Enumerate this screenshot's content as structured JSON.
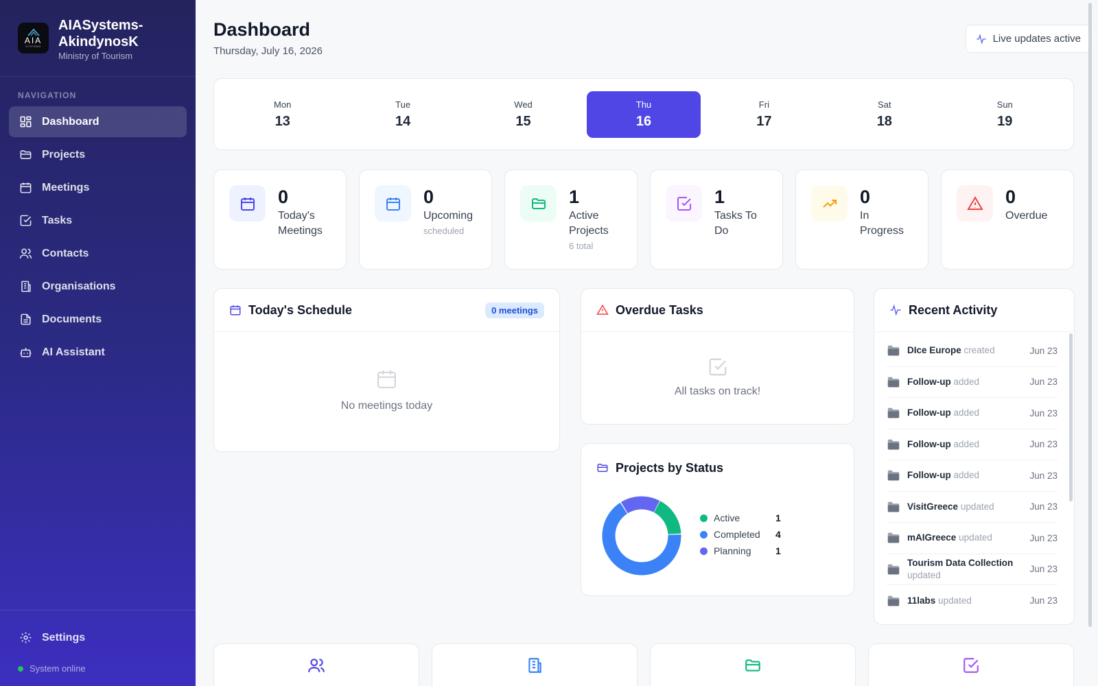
{
  "brand": {
    "name": "AIASystems-AkindynosK",
    "org": "Ministry of Tourism",
    "logo_text": "AIA",
    "logo_sub": "SYSTEMS"
  },
  "nav": {
    "heading": "NAVIGATION",
    "items": [
      {
        "label": "Dashboard",
        "icon": "grid-icon",
        "active": true
      },
      {
        "label": "Projects",
        "icon": "folder-icon"
      },
      {
        "label": "Meetings",
        "icon": "calendar-icon"
      },
      {
        "label": "Tasks",
        "icon": "checkbox-icon"
      },
      {
        "label": "Contacts",
        "icon": "users-icon"
      },
      {
        "label": "Organisations",
        "icon": "building-icon"
      },
      {
        "label": "Documents",
        "icon": "document-icon"
      },
      {
        "label": "AI Assistant",
        "icon": "bot-icon"
      }
    ],
    "settings": "Settings",
    "status": "System online"
  },
  "header": {
    "title": "Dashboard",
    "date": "Thursday, July 16, 2026",
    "live": "Live updates active"
  },
  "week": [
    {
      "name": "Mon",
      "num": "13"
    },
    {
      "name": "Tue",
      "num": "14"
    },
    {
      "name": "Wed",
      "num": "15"
    },
    {
      "name": "Thu",
      "num": "16",
      "active": true
    },
    {
      "name": "Fri",
      "num": "17"
    },
    {
      "name": "Sat",
      "num": "18"
    },
    {
      "name": "Sun",
      "num": "19"
    }
  ],
  "stats": [
    {
      "value": "0",
      "label": "Today's Meetings",
      "sub": ""
    },
    {
      "value": "0",
      "label": "Upcoming",
      "sub": "scheduled"
    },
    {
      "value": "1",
      "label": "Active Projects",
      "sub": "6 total"
    },
    {
      "value": "1",
      "label": "Tasks To Do",
      "sub": ""
    },
    {
      "value": "0",
      "label": "In Progress",
      "sub": ""
    },
    {
      "value": "0",
      "label": "Overdue",
      "sub": ""
    }
  ],
  "schedule": {
    "title": "Today's Schedule",
    "badge": "0 meetings",
    "empty": "No meetings today"
  },
  "overdue": {
    "title": "Overdue Tasks",
    "empty": "All tasks on track!"
  },
  "projects_status": {
    "title": "Projects by Status",
    "items": [
      {
        "label": "Active",
        "value": "1",
        "color": "#10b981"
      },
      {
        "label": "Completed",
        "value": "4",
        "color": "#3b82f6"
      },
      {
        "label": "Planning",
        "value": "1",
        "color": "#6366f1"
      }
    ]
  },
  "chart_data": {
    "type": "pie",
    "categories": [
      "Active",
      "Completed",
      "Planning"
    ],
    "values": [
      1,
      4,
      1
    ],
    "colors": [
      "#10b981",
      "#3b82f6",
      "#6366f1"
    ],
    "title": "Projects by Status"
  },
  "activity": {
    "title": "Recent Activity",
    "items": [
      {
        "name": "DIce Europe",
        "verb": "created",
        "date": "Jun 23"
      },
      {
        "name": "Follow-up",
        "verb": "added",
        "date": "Jun 23"
      },
      {
        "name": "Follow-up",
        "verb": "added",
        "date": "Jun 23"
      },
      {
        "name": "Follow-up",
        "verb": "added",
        "date": "Jun 23"
      },
      {
        "name": "Follow-up",
        "verb": "added",
        "date": "Jun 23"
      },
      {
        "name": "VisitGreece",
        "verb": "updated",
        "date": "Jun 23"
      },
      {
        "name": "mAIGreece",
        "verb": "updated",
        "date": "Jun 23"
      },
      {
        "name": "Tourism Data Collection",
        "verb": "updated",
        "date": "Jun 23"
      },
      {
        "name": "11labs",
        "verb": "updated",
        "date": "Jun 23"
      }
    ]
  },
  "colors": {
    "accent": "#4f46e5",
    "online": "#22c55e"
  }
}
